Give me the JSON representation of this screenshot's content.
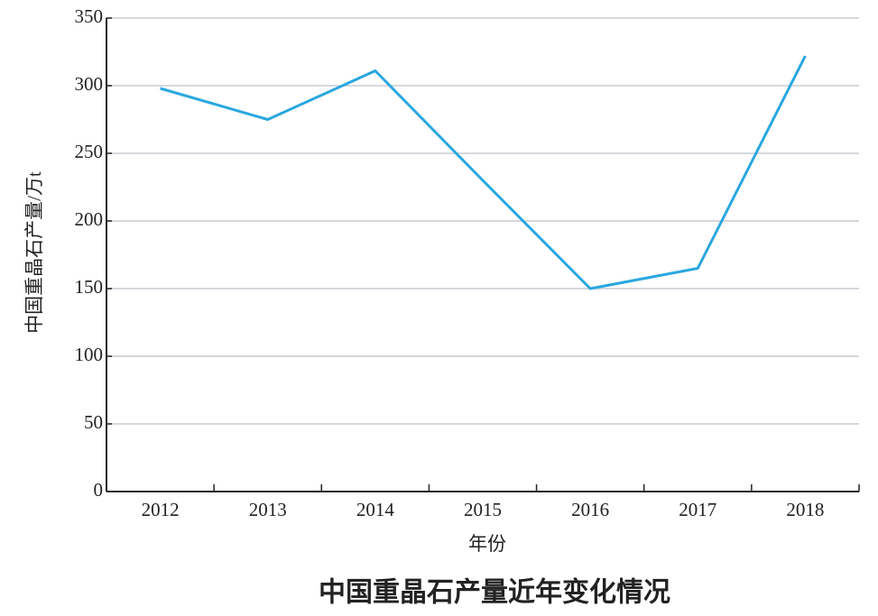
{
  "chart_data": {
    "type": "line",
    "title": "中国重晶石产量近年变化情况",
    "xlabel": "年份",
    "ylabel": "中国重晶石产量/万t",
    "categories": [
      "2012",
      "2013",
      "2014",
      "2015",
      "2016",
      "2017",
      "2018"
    ],
    "series": [
      {
        "color": "#2aa7df",
        "values": [
          298,
          275,
          311,
          230,
          150,
          165,
          322
        ]
      }
    ],
    "ylim": [
      0,
      350
    ],
    "yticks": [
      0,
      50,
      100,
      150,
      200,
      250,
      300,
      350
    ],
    "grid": true
  }
}
